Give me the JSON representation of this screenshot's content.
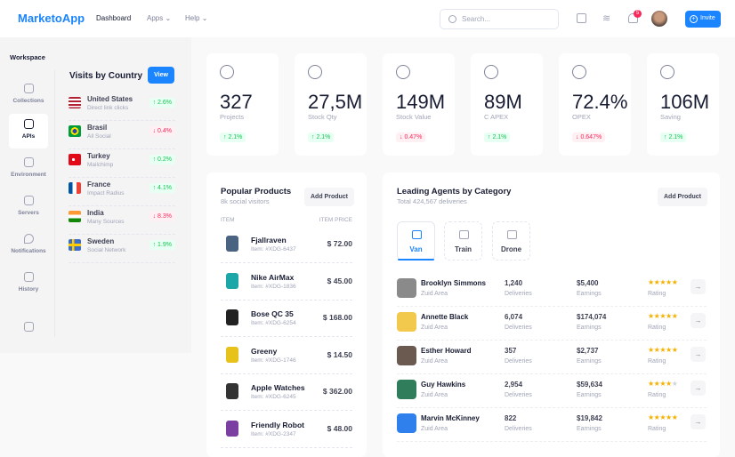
{
  "header": {
    "logo": "MarketoApp",
    "nav": [
      "Dashboard",
      "Apps",
      "Help"
    ],
    "search_placeholder": "Search...",
    "notification_count": "5",
    "invite_label": "Invite"
  },
  "sidebar": {
    "title": "Workspace",
    "items": [
      {
        "label": "Collections",
        "icon": "collections-icon"
      },
      {
        "label": "APIs",
        "icon": "layers-icon",
        "active": true
      },
      {
        "label": "Environment",
        "icon": "environment-icon"
      },
      {
        "label": "Servers",
        "icon": "servers-icon"
      },
      {
        "label": "Notifications",
        "icon": "rocket-icon"
      },
      {
        "label": "History",
        "icon": "chart-icon"
      }
    ]
  },
  "visits": {
    "title": "Visits by Country",
    "view_label": "View",
    "countries": [
      {
        "name": "United States",
        "source": "Direct link clicks",
        "change": "↑ 2.6%",
        "trend": "up"
      },
      {
        "name": "Brasil",
        "source": "All Social",
        "change": "↓ 0.4%",
        "trend": "down"
      },
      {
        "name": "Turkey",
        "source": "Mailchimp",
        "change": "↑ 0.2%",
        "trend": "up"
      },
      {
        "name": "France",
        "source": "Impact Radius",
        "change": "↑ 4.1%",
        "trend": "up"
      },
      {
        "name": "India",
        "source": "Many Sources",
        "change": "↓ 8.3%",
        "trend": "down"
      },
      {
        "name": "Sweden",
        "source": "Social Network",
        "change": "↑ 1.9%",
        "trend": "up"
      }
    ]
  },
  "stats": [
    {
      "value": "327",
      "label": "Projects",
      "change": "↑ 2.1%",
      "trend": "up",
      "icon": "compass-icon"
    },
    {
      "value": "27,5M",
      "label": "Stock Qty",
      "change": "↑ 2.1%",
      "trend": "up",
      "icon": "bar-chart-icon"
    },
    {
      "value": "149M",
      "label": "Stock Value",
      "change": "↓ 0.47%",
      "trend": "down",
      "icon": "ball-icon"
    },
    {
      "value": "89M",
      "label": "C APEX",
      "change": "↑ 2.1%",
      "trend": "up",
      "icon": "map-pin-icon"
    },
    {
      "value": "72.4%",
      "label": "OPEX",
      "change": "↓ 0.647%",
      "trend": "down",
      "icon": "lifebuoy-icon"
    },
    {
      "value": "106M",
      "label": "Saving",
      "change": "↑ 2.1%",
      "trend": "up",
      "icon": "layers-icon"
    }
  ],
  "products": {
    "title": "Popular Products",
    "subtitle": "8k social visitors",
    "add_label": "Add Product",
    "col_item": "ITEM",
    "col_price": "ITEM PRICE",
    "rows": [
      {
        "name": "Fjallraven",
        "item": "Item: #XDG-6437",
        "price": "$ 72.00"
      },
      {
        "name": "Nike AirMax",
        "item": "Item: #XDG-1836",
        "price": "$ 45.00"
      },
      {
        "name": "Bose QC 35",
        "item": "Item: #XDG-6254",
        "price": "$ 168.00"
      },
      {
        "name": "Greeny",
        "item": "Item: #XDG-1746",
        "price": "$ 14.50"
      },
      {
        "name": "Apple Watches",
        "item": "Item: #XDG-6245",
        "price": "$ 362.00"
      },
      {
        "name": "Friendly Robot",
        "item": "Item: #XDG-2347",
        "price": "$ 48.00"
      }
    ]
  },
  "agents": {
    "title": "Leading Agents by Category",
    "subtitle": "Total 424,567 deliveries",
    "add_label": "Add Product",
    "tabs": [
      "Van",
      "Train",
      "Drone"
    ],
    "deliveries_label": "Deliveries",
    "earnings_label": "Earnings",
    "rating_label": "Rating",
    "rows": [
      {
        "name": "Brooklyn Simmons",
        "area": "Zuid Area",
        "deliveries": "1,240",
        "earnings": "$5,400",
        "rating": 5
      },
      {
        "name": "Annette Black",
        "area": "Zuid Area",
        "deliveries": "6,074",
        "earnings": "$174,074",
        "rating": 5
      },
      {
        "name": "Esther Howard",
        "area": "Zuid Area",
        "deliveries": "357",
        "earnings": "$2,737",
        "rating": 5
      },
      {
        "name": "Guy Hawkins",
        "area": "Zuid Area",
        "deliveries": "2,954",
        "earnings": "$59,634",
        "rating": 4
      },
      {
        "name": "Marvin McKinney",
        "area": "Zuid Area",
        "deliveries": "822",
        "earnings": "$19,842",
        "rating": 5
      }
    ]
  },
  "colors": {
    "accent": "#1b84ff",
    "up": "#17c653",
    "down": "#f8285a",
    "star": "#f6b100"
  }
}
